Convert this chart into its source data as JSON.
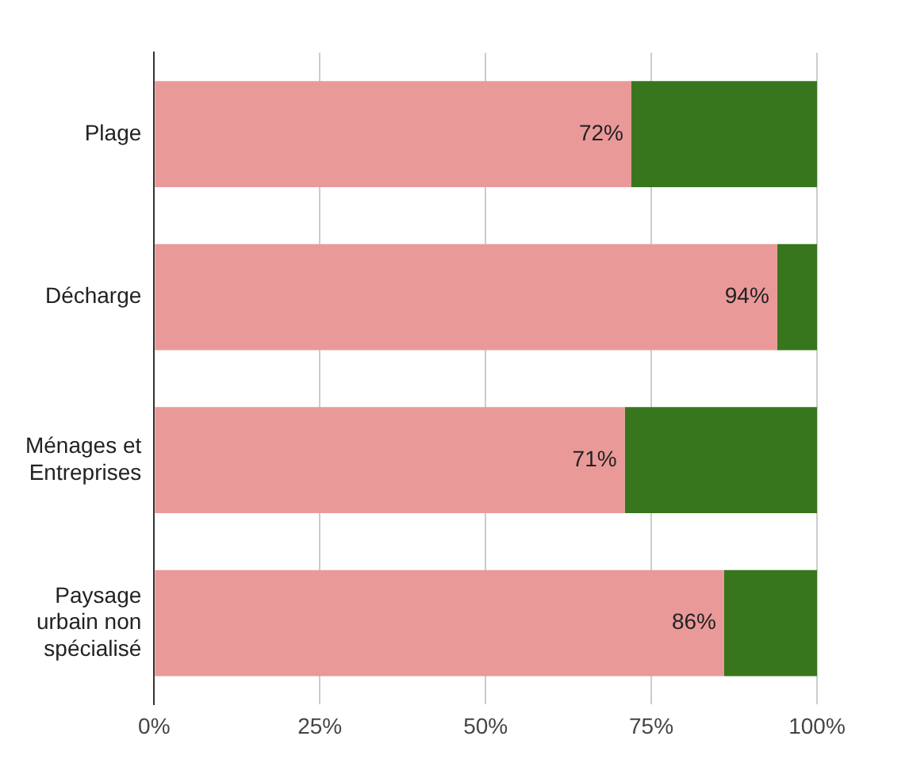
{
  "chart_data": {
    "type": "bar",
    "orientation": "horizontal",
    "stacked": true,
    "categories": [
      "Plage",
      "Décharge",
      "Ménages et Entreprises",
      "Paysage urbain non spécialisé"
    ],
    "series": [
      {
        "color": "#ea9999",
        "values": [
          72,
          94,
          71,
          86
        ],
        "value_labels": [
          "72%",
          "94%",
          "71%",
          "86%"
        ]
      },
      {
        "color": "#38761d",
        "values": [
          28,
          6,
          29,
          14
        ]
      }
    ],
    "xlim": [
      0,
      100
    ],
    "xticks": [
      {
        "value": 0,
        "label": "0%"
      },
      {
        "value": 25,
        "label": "25%"
      },
      {
        "value": 50,
        "label": "50%"
      },
      {
        "value": 75,
        "label": "75%"
      },
      {
        "value": 100,
        "label": "100%"
      }
    ],
    "grid": "x",
    "legend": false
  }
}
